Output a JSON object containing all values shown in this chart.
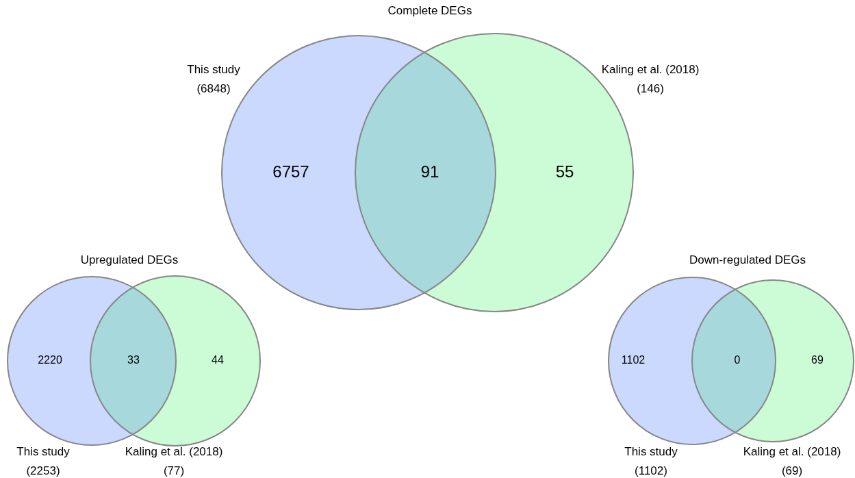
{
  "chart_data": [
    {
      "type": "other",
      "title": "Complete DEGs",
      "colors": [
        "#ccd9fe",
        "#a6d8dc",
        "#ccfcd6"
      ],
      "annotations": [
        "6757",
        "91",
        "55"
      ],
      "series": [
        {
          "name": "This study",
          "values": [
            6848
          ],
          "value_labels": [
            "(6848)"
          ]
        },
        {
          "name": "Kaling et al. (2018)",
          "values": [
            146
          ],
          "value_labels": [
            "(146)"
          ]
        }
      ]
    },
    {
      "type": "other",
      "title": "Upregulated DEGs",
      "colors": [
        "#ccd9fe",
        "#a6d8dc",
        "#ccfcd6"
      ],
      "annotations": [
        "2220",
        "33",
        "44"
      ],
      "series": [
        {
          "name": "This study",
          "values": [
            2253
          ],
          "value_labels": [
            "(2253)"
          ]
        },
        {
          "name": "Kaling et al. (2018)",
          "values": [
            77
          ],
          "value_labels": [
            "(77)"
          ]
        }
      ]
    },
    {
      "type": "other",
      "title": "Down-regulated DEGs",
      "colors": [
        "#ccd9fe",
        "#a6d8dc",
        "#ccfcd6"
      ],
      "annotations": [
        "1102",
        "0",
        "69"
      ],
      "series": [
        {
          "name": "This study",
          "values": [
            1102
          ],
          "value_labels": [
            "(1102)"
          ]
        },
        {
          "name": "Kaling et al. (2018)",
          "values": [
            69
          ],
          "value_labels": [
            "(69)"
          ]
        }
      ]
    }
  ]
}
